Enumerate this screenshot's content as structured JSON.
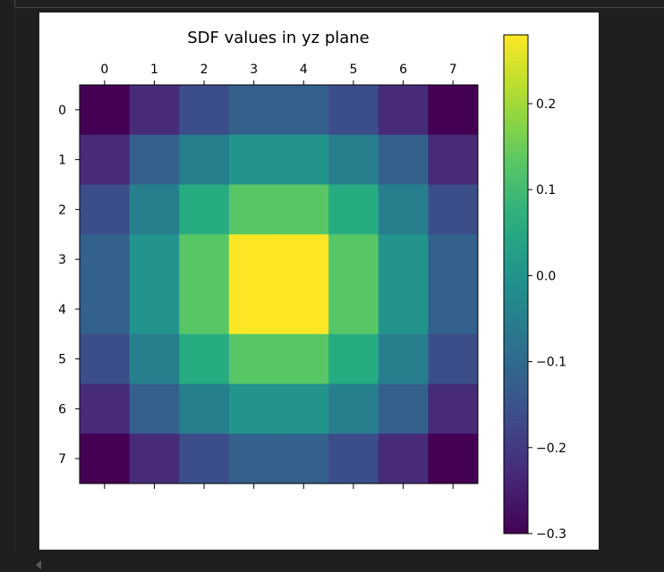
{
  "chart_data": {
    "type": "heatmap",
    "title": "SDF values in yz plane",
    "x_tick_labels": [
      "0",
      "1",
      "2",
      "3",
      "4",
      "5",
      "6",
      "7"
    ],
    "y_tick_labels": [
      "0",
      "1",
      "2",
      "3",
      "4",
      "5",
      "6",
      "7"
    ],
    "values": [
      [
        -0.3,
        -0.23,
        -0.16,
        -0.12,
        -0.12,
        -0.16,
        -0.23,
        -0.3
      ],
      [
        -0.23,
        -0.12,
        -0.05,
        0.0,
        0.0,
        -0.05,
        -0.12,
        -0.23
      ],
      [
        -0.16,
        -0.05,
        0.06,
        0.13,
        0.13,
        0.06,
        -0.05,
        -0.16
      ],
      [
        -0.12,
        0.0,
        0.13,
        0.28,
        0.28,
        0.13,
        0.0,
        -0.12
      ],
      [
        -0.12,
        0.0,
        0.13,
        0.28,
        0.28,
        0.13,
        0.0,
        -0.12
      ],
      [
        -0.16,
        -0.05,
        0.06,
        0.13,
        0.13,
        0.06,
        -0.05,
        -0.16
      ],
      [
        -0.23,
        -0.12,
        -0.05,
        0.0,
        0.0,
        -0.05,
        -0.12,
        -0.23
      ],
      [
        -0.3,
        -0.23,
        -0.16,
        -0.12,
        -0.12,
        -0.16,
        -0.23,
        -0.3
      ]
    ],
    "colorbar": {
      "vmin": -0.3,
      "vmax": 0.28,
      "ticks": [
        0.2,
        0.1,
        0.0,
        -0.1,
        -0.2,
        -0.3
      ],
      "tick_labels": [
        "0.2",
        "0.1",
        "0.0",
        "−0.1",
        "−0.2",
        "−0.3"
      ]
    },
    "colormap": "viridis",
    "grid": false
  }
}
